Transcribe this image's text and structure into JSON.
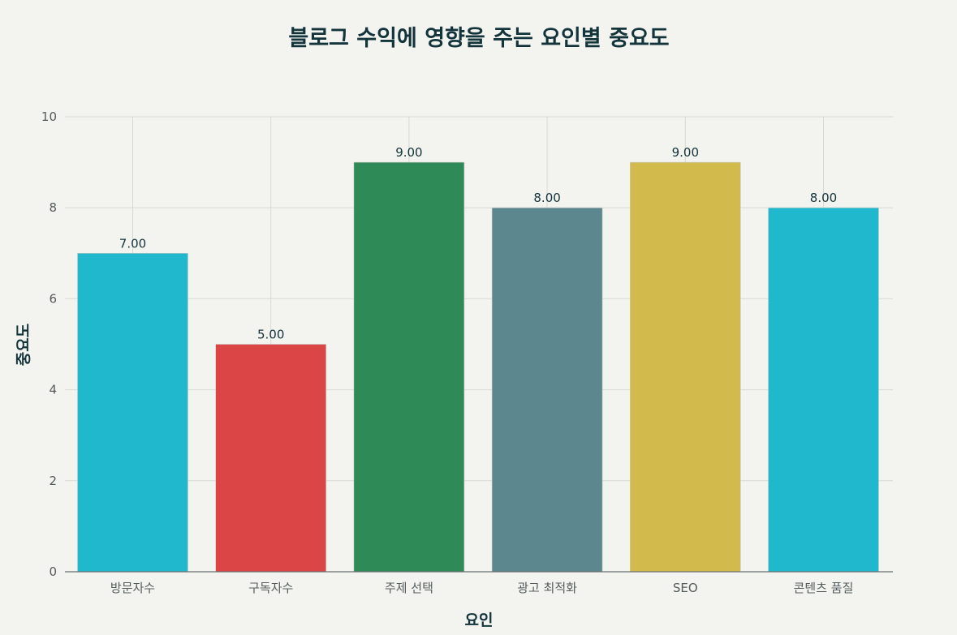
{
  "chart_data": {
    "type": "bar",
    "title": "블로그 수익에 영향을 주는 요인별 중요도",
    "xlabel": "요인",
    "ylabel": "중요도",
    "categories": [
      "방문자수",
      "구독자수",
      "주제 선택",
      "광고 최적화",
      "SEO",
      "콘텐츠 품질"
    ],
    "values": [
      7,
      5,
      9,
      8,
      9,
      8
    ],
    "value_labels": [
      "7.00",
      "5.00",
      "9.00",
      "8.00",
      "9.00",
      "8.00"
    ],
    "colors": [
      "#1fb8cd",
      "#db4545",
      "#2e8b57",
      "#5d878f",
      "#d2ba4c",
      "#1fb8cd"
    ],
    "ylim": [
      0,
      10
    ],
    "yticks": [
      0,
      2,
      4,
      6,
      8,
      10
    ],
    "ytick_labels": [
      "0",
      "2",
      "4",
      "6",
      "8",
      "10"
    ],
    "grid": true,
    "legend": "none"
  }
}
